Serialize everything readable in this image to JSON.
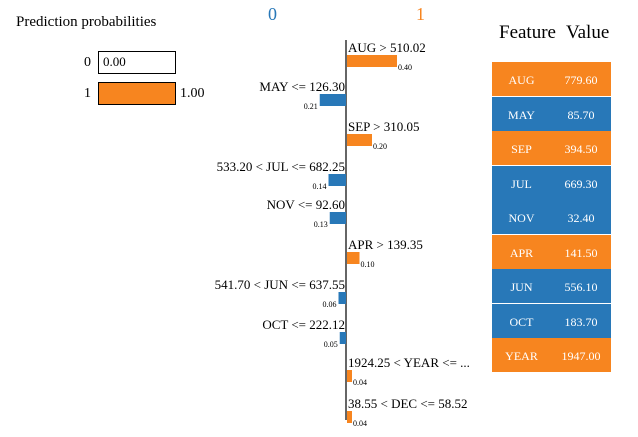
{
  "prediction": {
    "title": "Prediction probabilities",
    "rows": [
      {
        "label": "0",
        "value": 0.0,
        "display": "0.00"
      },
      {
        "label": "1",
        "value": 1.0,
        "display": "1.00"
      }
    ]
  },
  "class_labels": {
    "neg": "0",
    "pos": "1"
  },
  "colors": {
    "orange": "#f7851f",
    "blue": "#2878b8",
    "axis": "#000000"
  },
  "chart_data": {
    "type": "bar",
    "orientation": "horizontal-diverging",
    "title": "",
    "xlabel": "",
    "ylabel": "",
    "categories": [
      "AUG > 510.02",
      "MAY <= 126.30",
      "SEP > 310.05",
      "533.20 < JUL <= 682.25",
      "NOV <= 92.60",
      "APR > 139.35",
      "541.70 < JUN <= 637.55",
      "OCT <= 222.12",
      "1924.25 < YEAR <= ...",
      "38.55 < DEC <= 58.52"
    ],
    "values": [
      0.4,
      -0.21,
      0.2,
      -0.14,
      -0.13,
      0.1,
      -0.06,
      -0.05,
      0.04,
      0.04
    ],
    "value_labels": [
      "0.40",
      "0.21",
      "0.20",
      "0.14",
      "0.13",
      "0.10",
      "0.06",
      "0.05",
      "0.04",
      "0.04"
    ],
    "xlim": [
      -0.4,
      0.4
    ]
  },
  "feature_table": {
    "headers": {
      "feature": "Feature",
      "value": "Value"
    },
    "rows": [
      {
        "feature": "AUG",
        "value": "779.60",
        "color": "#f7851f"
      },
      {
        "feature": "MAY",
        "value": "85.70",
        "color": "#2878b8"
      },
      {
        "feature": "SEP",
        "value": "394.50",
        "color": "#f7851f"
      },
      {
        "feature": "JUL",
        "value": "669.30",
        "color": "#2878b8"
      },
      {
        "feature": "NOV",
        "value": "32.40",
        "color": "#2878b8"
      },
      {
        "feature": "APR",
        "value": "141.50",
        "color": "#f7851f"
      },
      {
        "feature": "JUN",
        "value": "556.10",
        "color": "#2878b8"
      },
      {
        "feature": "OCT",
        "value": "183.70",
        "color": "#2878b8"
      },
      {
        "feature": "YEAR",
        "value": "1947.00",
        "color": "#f7851f"
      }
    ]
  }
}
